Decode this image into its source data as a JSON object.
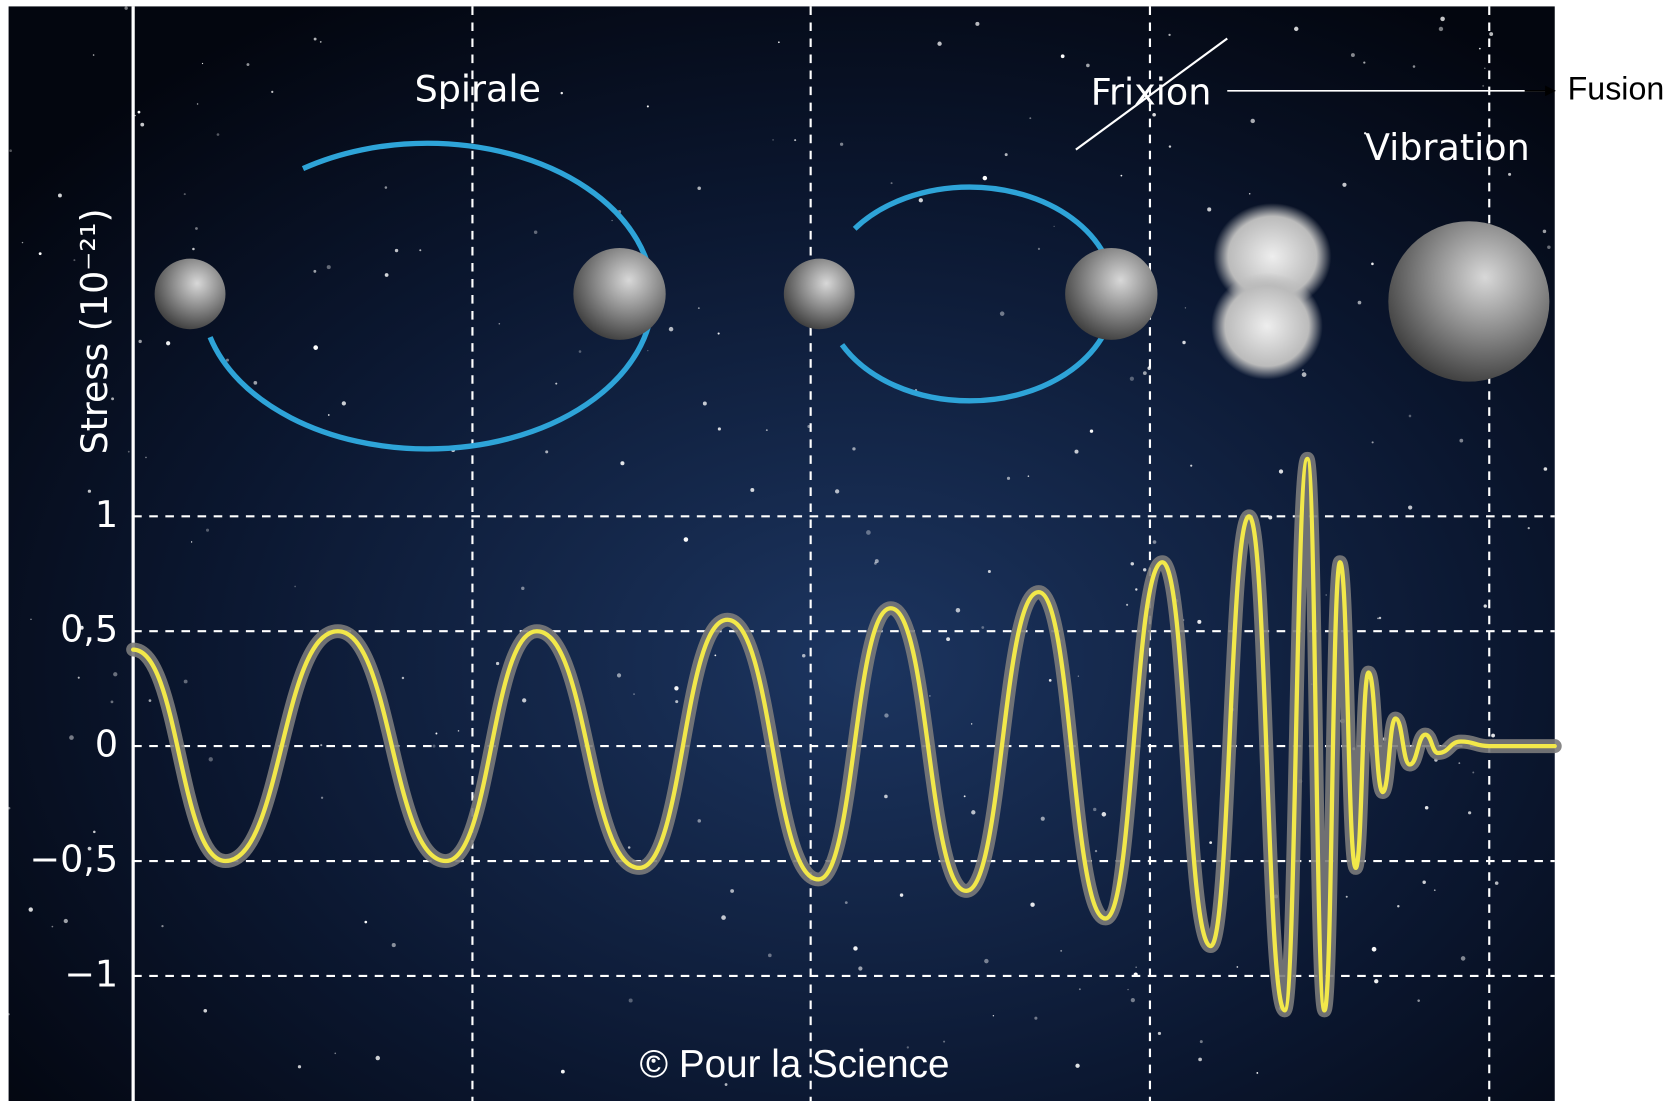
{
  "chart_data": {
    "type": "line",
    "ylabel": "Stress (10⁻²¹)",
    "annotations": {
      "spiral": "Spirale",
      "friction": "Frixion",
      "fusion": "Fusion",
      "vibration": "Vibration",
      "credit": "© Pour la Science"
    },
    "x": [
      0,
      6.5,
      14.4,
      22.0,
      28.4,
      35.6,
      41.8,
      48.2,
      53.3,
      58.6,
      63.7,
      68.4,
      72.4,
      75.8,
      78.5,
      81.0,
      82.6,
      83.8,
      84.9,
      86.0,
      86.9,
      87.9,
      88.8,
      89.8,
      90.9,
      91.8,
      93.4,
      95.4,
      100
    ],
    "values": [
      0.42,
      -0.5,
      0.5,
      -0.5,
      0.5,
      -0.53,
      0.55,
      -0.58,
      0.6,
      -0.63,
      0.67,
      -0.75,
      0.8,
      -0.87,
      1.0,
      -1.15,
      1.25,
      -1.15,
      0.8,
      -0.53,
      0.32,
      -0.2,
      0.12,
      -0.08,
      0.05,
      -0.03,
      0.02,
      0,
      0
    ],
    "color": "#f2e84a",
    "xlim": [
      0,
      100
    ],
    "ylim": [
      -1.5,
      2.2
    ],
    "yticks": [
      {
        "value": -1,
        "label": "−1"
      },
      {
        "value": -0.5,
        "label": "−0,5"
      },
      0,
      {
        "value": 0.5,
        "label": "0,5"
      },
      1
    ],
    "grid": true
  }
}
